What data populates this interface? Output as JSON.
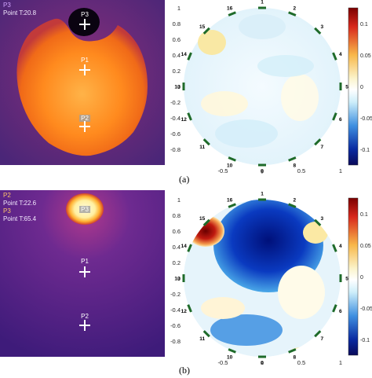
{
  "panel_a": {
    "caption": "(a)",
    "thermal": {
      "readouts": [
        {
          "label": "P3",
          "value": "Point T:20.8"
        }
      ],
      "markers": [
        {
          "name": "P3",
          "boxed": false
        },
        {
          "name": "P1",
          "boxed": false
        },
        {
          "name": "P2",
          "boxed": true
        }
      ]
    },
    "eit": {
      "electrodes": [
        "1",
        "2",
        "3",
        "4",
        "5",
        "6",
        "7",
        "8",
        "9",
        "10",
        "11",
        "12",
        "13",
        "14",
        "15",
        "16"
      ],
      "colorbar_ticks": [
        "0.1",
        "0.05",
        "0",
        "-0.05",
        "-0.1"
      ]
    }
  },
  "panel_b": {
    "caption": "(b)",
    "thermal": {
      "readouts": [
        {
          "label": "P2",
          "value": "Point T:22.6"
        },
        {
          "label": "P3",
          "value": "Point T:65.4"
        }
      ],
      "markers": [
        {
          "name": "P3",
          "boxed": true
        },
        {
          "name": "P1",
          "boxed": false
        },
        {
          "name": "P2",
          "boxed": false
        }
      ]
    },
    "eit": {
      "electrodes": [
        "1",
        "2",
        "3",
        "4",
        "5",
        "6",
        "7",
        "8",
        "9",
        "10",
        "11",
        "12",
        "13",
        "14",
        "15",
        "16"
      ],
      "colorbar_ticks": [
        "0.1",
        "0.05",
        "0",
        "-0.05",
        "-0.1"
      ]
    }
  },
  "axes": {
    "y_ticks": [
      "1",
      "0.8",
      "0.6",
      "0.4",
      "0.2",
      "0",
      "-0.2",
      "-0.4",
      "-0.6",
      "-0.8"
    ],
    "x_ticks": [
      "-0.5",
      "0",
      "0.5",
      "1"
    ]
  },
  "colors": {
    "cold": "#0a1a8c",
    "neutral": "#ffffff",
    "hot": "#8c0a0a",
    "electrode": "#1f6b2a"
  }
}
